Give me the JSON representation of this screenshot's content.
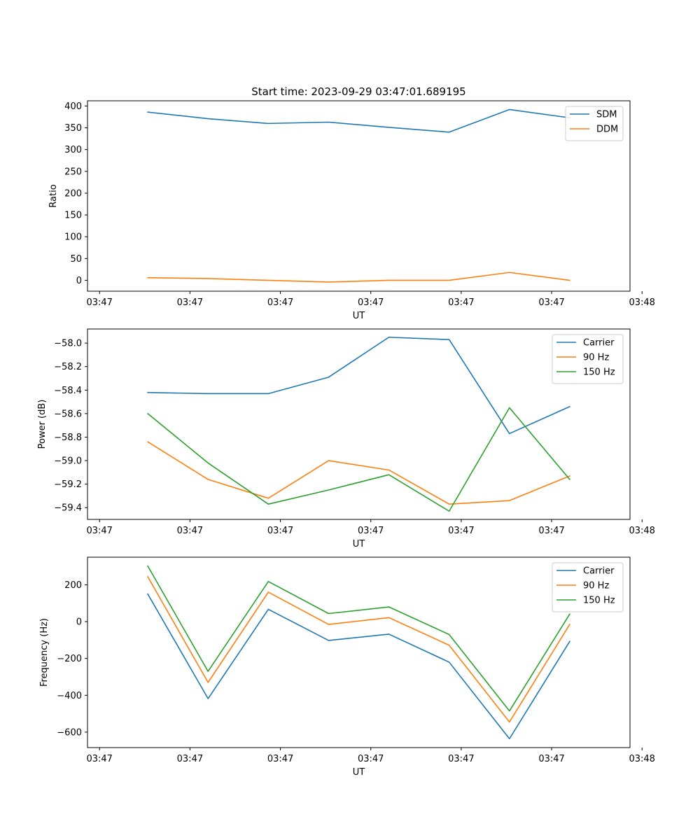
{
  "title": "Start time: 2023-09-29 03:47:01.689195",
  "colors": {
    "blue": "#1f77b4",
    "orange": "#ff7f0e",
    "green": "#2ca02c"
  },
  "chart_data": [
    {
      "type": "line",
      "xlabel": "UT",
      "ylabel": "Ratio",
      "xlim": [
        0,
        9
      ],
      "x_ticks": [
        0.2,
        1.7,
        3.2,
        4.7,
        6.2,
        7.7,
        9.2
      ],
      "x_tick_labels": [
        "03:47",
        "03:47",
        "03:47",
        "03:47",
        "03:47",
        "03:47",
        "03:48"
      ],
      "ylim": [
        -25,
        412
      ],
      "y_ticks": [
        0,
        50,
        100,
        150,
        200,
        250,
        300,
        350,
        400
      ],
      "y_tick_labels": [
        "0",
        "50",
        "100",
        "150",
        "200",
        "250",
        "300",
        "350",
        "400"
      ],
      "x": [
        1,
        2,
        3,
        4,
        5,
        6,
        7,
        8
      ],
      "legend_position": "top-right",
      "series": [
        {
          "name": "SDM",
          "color": "#1f77b4",
          "values": [
            386,
            371,
            360,
            363,
            351,
            340,
            392,
            373
          ]
        },
        {
          "name": "DDM",
          "color": "#ff7f0e",
          "values": [
            6,
            4,
            0,
            -4,
            0,
            0,
            18,
            0
          ]
        }
      ]
    },
    {
      "type": "line",
      "xlabel": "UT",
      "ylabel": "Power (dB)",
      "xlim": [
        0,
        9
      ],
      "x_ticks": [
        0.2,
        1.7,
        3.2,
        4.7,
        6.2,
        7.7,
        9.2
      ],
      "x_tick_labels": [
        "03:47",
        "03:47",
        "03:47",
        "03:47",
        "03:47",
        "03:47",
        "03:48"
      ],
      "ylim": [
        -59.5,
        -57.88
      ],
      "y_ticks": [
        -59.4,
        -59.2,
        -59.0,
        -58.8,
        -58.6,
        -58.4,
        -58.2,
        -58.0
      ],
      "y_tick_labels": [
        "−59.4",
        "−59.2",
        "−59.0",
        "−58.8",
        "−58.6",
        "−58.4",
        "−58.2",
        "−58.0"
      ],
      "x": [
        1,
        2,
        3,
        4,
        5,
        6,
        7,
        8
      ],
      "legend_position": "top-right",
      "series": [
        {
          "name": "Carrier",
          "color": "#1f77b4",
          "values": [
            -58.42,
            -58.43,
            -58.43,
            -58.29,
            -57.95,
            -57.97,
            -58.77,
            -58.54
          ]
        },
        {
          "name": "90 Hz",
          "color": "#ff7f0e",
          "values": [
            -58.84,
            -59.16,
            -59.32,
            -59.0,
            -59.08,
            -59.37,
            -59.34,
            -59.13
          ]
        },
        {
          "name": "150 Hz",
          "color": "#2ca02c",
          "values": [
            -58.6,
            -59.02,
            -59.37,
            -59.25,
            -59.12,
            -59.43,
            -58.55,
            -59.16
          ]
        }
      ]
    },
    {
      "type": "line",
      "xlabel": "UT",
      "ylabel": "Frequency (Hz)",
      "xlim": [
        0,
        9
      ],
      "x_ticks": [
        0.2,
        1.7,
        3.2,
        4.7,
        6.2,
        7.7,
        9.2
      ],
      "x_tick_labels": [
        "03:47",
        "03:47",
        "03:47",
        "03:47",
        "03:47",
        "03:47",
        "03:48"
      ],
      "ylim": [
        -684,
        350
      ],
      "y_ticks": [
        -600,
        -400,
        -200,
        0,
        200
      ],
      "y_tick_labels": [
        "−600",
        "−400",
        "−200",
        "0",
        "200"
      ],
      "x": [
        1,
        2,
        3,
        4,
        5,
        6,
        7,
        8
      ],
      "legend_position": "top-right",
      "series": [
        {
          "name": "Carrier",
          "color": "#1f77b4",
          "values": [
            150,
            -418,
            67,
            -102,
            -68,
            -220,
            -636,
            -107
          ]
        },
        {
          "name": "90 Hz",
          "color": "#ff7f0e",
          "values": [
            244,
            -330,
            160,
            -15,
            22,
            -128,
            -545,
            -15
          ]
        },
        {
          "name": "150 Hz",
          "color": "#2ca02c",
          "values": [
            302,
            -270,
            218,
            44,
            80,
            -70,
            -485,
            41
          ]
        }
      ]
    }
  ]
}
